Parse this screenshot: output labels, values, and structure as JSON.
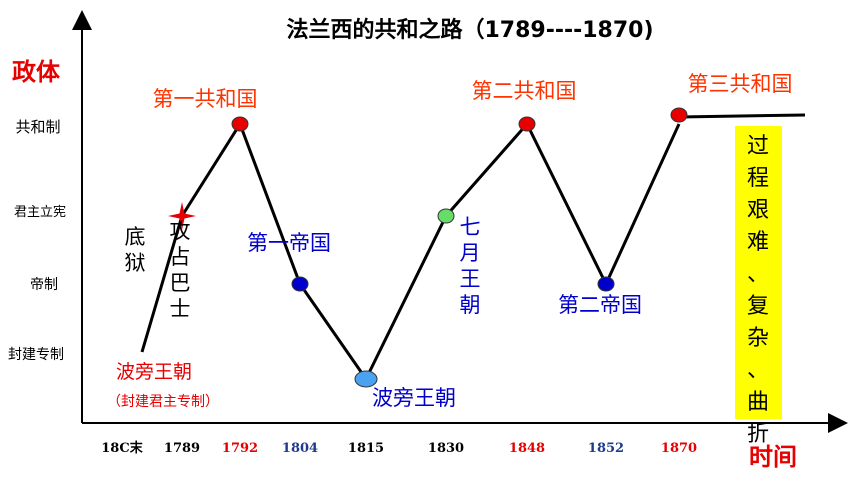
{
  "chart_data": {
    "type": "line",
    "title": "法兰西的共和之路（1789----1870)",
    "ylabel": "政体",
    "xlabel": "时间",
    "y_categories": [
      "封建专制",
      "帝制",
      "君主立宪",
      "共和制"
    ],
    "x_ticks": [
      {
        "label": "18C末",
        "color": "#000000"
      },
      {
        "label": "1789",
        "color": "#000000"
      },
      {
        "label": "1792",
        "color": "#e60000"
      },
      {
        "label": "1804",
        "color": "#1f3a8a"
      },
      {
        "label": "1815",
        "color": "#000000"
      },
      {
        "label": "1830",
        "color": "#000000"
      },
      {
        "label": "1848",
        "color": "#e60000"
      },
      {
        "label": "1852",
        "color": "#1f3a8a"
      },
      {
        "label": "1870",
        "color": "#e60000"
      }
    ],
    "points": [
      {
        "x": "18C末",
        "y": "封建专制",
        "marker": null
      },
      {
        "x": "1789",
        "y": "君主立宪",
        "marker": "star",
        "color": "#e60000"
      },
      {
        "x": "1792",
        "y": "共和制",
        "marker": "dot",
        "color": "#e60000"
      },
      {
        "x": "1804",
        "y": "帝制",
        "marker": "dot",
        "color": "#0000cc"
      },
      {
        "x": "1815",
        "y": "封建专制",
        "marker": "dot",
        "color": "#4aa3f0"
      },
      {
        "x": "1830",
        "y": "君主立宪",
        "marker": "dot",
        "color": "#66dd66"
      },
      {
        "x": "1848",
        "y": "共和制",
        "marker": "dot",
        "color": "#e60000"
      },
      {
        "x": "1852",
        "y": "帝制",
        "marker": "dot",
        "color": "#0000cc"
      },
      {
        "x": "1870",
        "y": "共和制",
        "marker": "dot",
        "color": "#e60000"
      }
    ],
    "annotations": {
      "bastille_col1": "底狱",
      "bastille_col2": "攻占巴士",
      "bourbon1": "波旁王朝",
      "bourbon1_note": "（封建君主专制）",
      "republic1": "第一共和国",
      "empire1": "第一帝国",
      "bourbon2": "波旁王朝",
      "july": "七月王朝",
      "republic2": "第二共和国",
      "empire2": "第二帝国",
      "republic3": "第三共和国",
      "summary": "过程艰难、复杂、曲折"
    },
    "colors": {
      "red": "#e60000",
      "orange_red": "#ff3300",
      "blue": "#0000cc",
      "summary_bg": "#ffff00"
    }
  }
}
